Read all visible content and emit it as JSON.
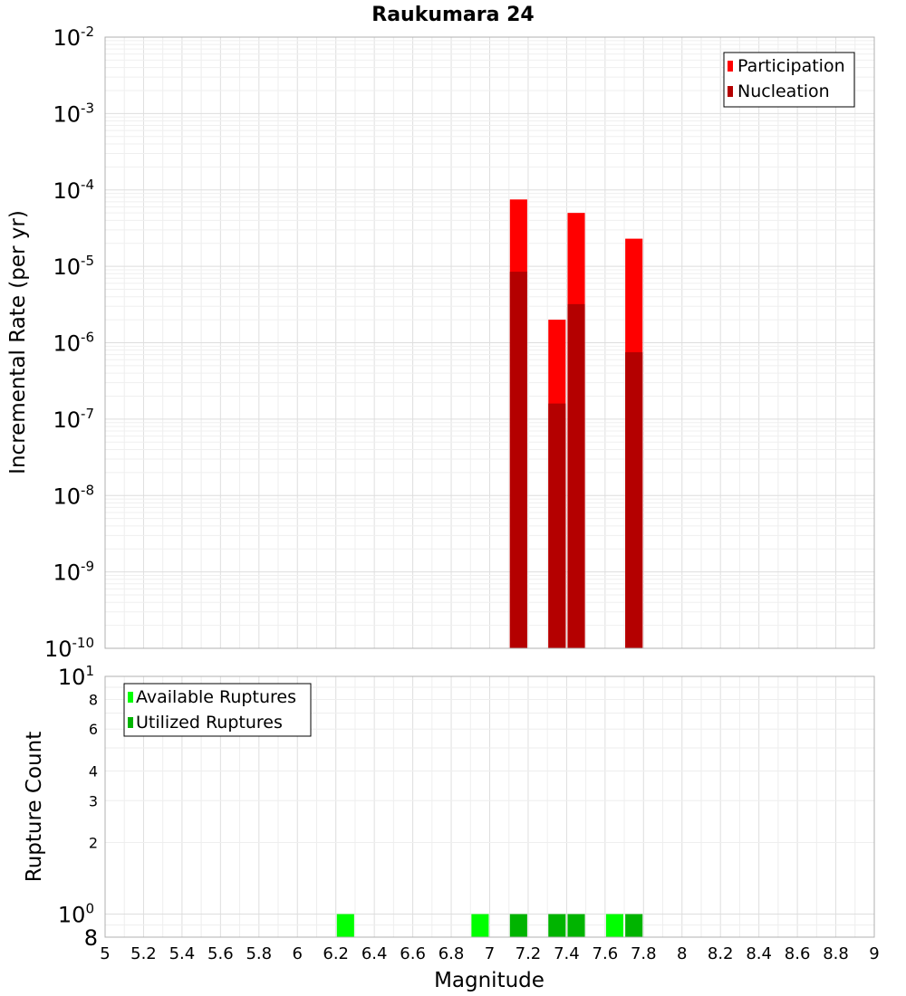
{
  "chart_data": [
    {
      "type": "bar",
      "title": "Raukumara 24",
      "ylabel": "Incremental Rate (per yr)",
      "xlabel": "",
      "xlim": [
        5,
        9
      ],
      "ylim": [
        1e-10,
        0.01
      ],
      "y_scale": "log",
      "bar_width": 0.09,
      "grid": true,
      "legend_position": "top-right",
      "y_ticks": [
        {
          "base": "10",
          "exp": "-10"
        },
        {
          "base": "10",
          "exp": "-9"
        },
        {
          "base": "10",
          "exp": "-8"
        },
        {
          "base": "10",
          "exp": "-7"
        },
        {
          "base": "10",
          "exp": "-6"
        },
        {
          "base": "10",
          "exp": "-5"
        },
        {
          "base": "10",
          "exp": "-4"
        },
        {
          "base": "10",
          "exp": "-3"
        },
        {
          "base": "10",
          "exp": "-2"
        }
      ],
      "series": [
        {
          "name": "Participation",
          "color": "#ff0000",
          "points": [
            {
              "x": 7.15,
              "y": 7.5e-05
            },
            {
              "x": 7.35,
              "y": 2e-06
            },
            {
              "x": 7.45,
              "y": 5e-05
            },
            {
              "x": 7.75,
              "y": 2.3e-05
            }
          ]
        },
        {
          "name": "Nucleation",
          "color": "#b40000",
          "points": [
            {
              "x": 7.15,
              "y": 8.5e-06
            },
            {
              "x": 7.35,
              "y": 1.6e-07
            },
            {
              "x": 7.45,
              "y": 3.2e-06
            },
            {
              "x": 7.75,
              "y": 7.5e-07
            }
          ]
        }
      ]
    },
    {
      "type": "bar",
      "xlabel": "Magnitude",
      "ylabel": "Rupture Count",
      "xlim": [
        5,
        9
      ],
      "ylim": [
        0.8,
        10
      ],
      "y_scale": "log",
      "bar_width": 0.09,
      "grid": true,
      "legend_position": "top-left",
      "x_ticks": [
        "5",
        "5.2",
        "5.4",
        "5.6",
        "5.8",
        "6",
        "6.2",
        "6.4",
        "6.6",
        "6.8",
        "7",
        "7.2",
        "7.4",
        "7.6",
        "7.8",
        "8",
        "8.2",
        "8.4",
        "8.6",
        "8.8",
        "9"
      ],
      "y_ticks": [
        {
          "value": 0.8,
          "label": "8",
          "exp": ""
        },
        {
          "value": 1,
          "label": "10",
          "exp": "0"
        },
        {
          "value": 2,
          "label": "2",
          "exp": ""
        },
        {
          "value": 3,
          "label": "3",
          "exp": ""
        },
        {
          "value": 4,
          "label": "4",
          "exp": ""
        },
        {
          "value": 6,
          "label": "6",
          "exp": ""
        },
        {
          "value": 8,
          "label": "8",
          "exp": ""
        },
        {
          "value": 10,
          "label": "10",
          "exp": "1"
        }
      ],
      "series": [
        {
          "name": "Available Ruptures",
          "color": "#00ff00",
          "points": [
            {
              "x": 6.25,
              "y": 1
            },
            {
              "x": 6.95,
              "y": 1
            },
            {
              "x": 7.65,
              "y": 1
            }
          ]
        },
        {
          "name": "Utilized Ruptures",
          "color": "#00b400",
          "points": [
            {
              "x": 7.15,
              "y": 1
            },
            {
              "x": 7.35,
              "y": 1
            },
            {
              "x": 7.45,
              "y": 1
            },
            {
              "x": 7.75,
              "y": 1
            }
          ]
        }
      ]
    }
  ]
}
